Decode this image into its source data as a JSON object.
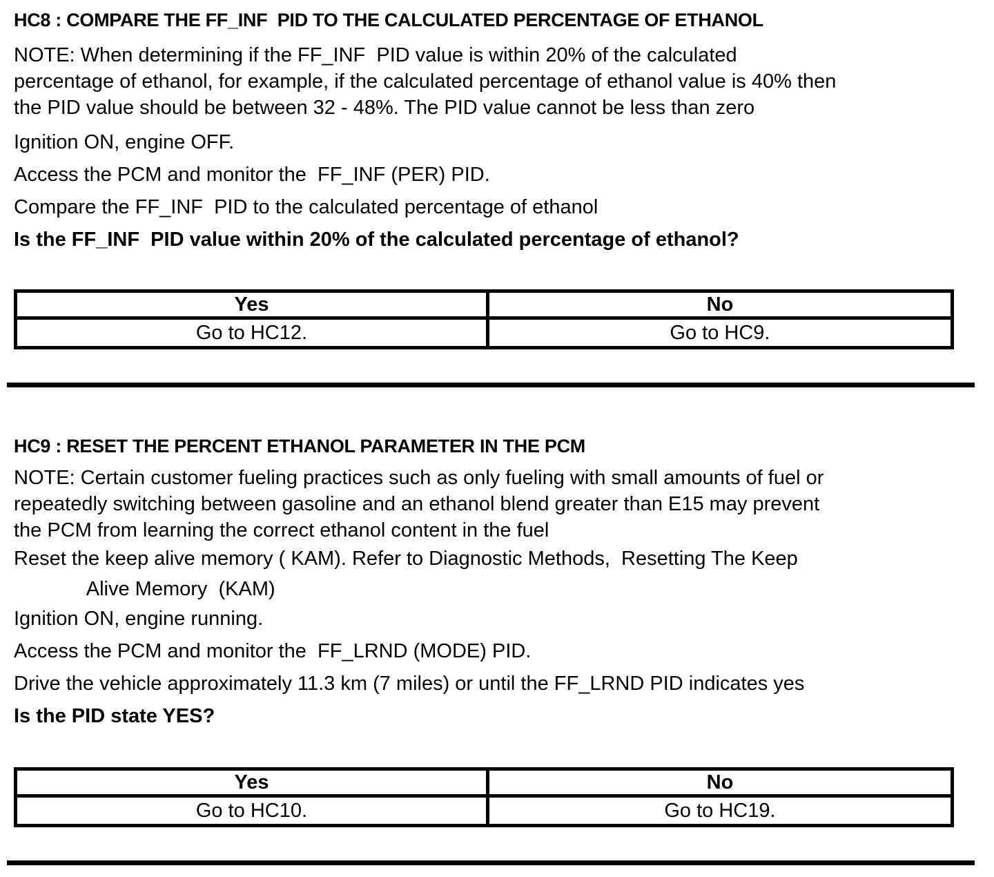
{
  "sections": [
    {
      "id": "HC8",
      "heading": "HC8 : COMPARE THE FF_INF  PID TO THE CALCULATED PERCENTAGE OF ETHANOL",
      "note": "NOTE: When determining if the FF_INF  PID value is within 20% of the calculated\npercentage of ethanol, for example, if the calculated percentage of ethanol value is 40% then\nthe PID value should be between 32 - 48%. The PID value cannot be less than zero",
      "steps": [
        "Ignition ON, engine OFF.",
        "Access the PCM and monitor the  FF_INF (PER) PID.",
        "Compare the FF_INF  PID to the calculated percentage of ethanol"
      ],
      "question": "Is the FF_INF  PID value within 20% of the calculated percentage of ethanol?",
      "table": {
        "headers": [
          "Yes",
          "No"
        ],
        "rows": [
          [
            "Go to HC12.",
            "Go to HC9."
          ]
        ]
      }
    },
    {
      "id": "HC9",
      "heading": "HC9 : RESET THE PERCENT ETHANOL PARAMETER IN THE PCM",
      "note": "NOTE: Certain customer fueling practices such as only fueling with small amounts of fuel or\nrepeatedly switching between gasoline and an ethanol blend greater than E15 may prevent\nthe PCM from learning the correct ethanol content in the fuel",
      "steps": [
        "Reset the keep alive memory ( KAM). Refer to Diagnostic Methods,  Resetting The Keep\n             Alive Memory  (KAM)",
        "Ignition ON, engine running.",
        "Access the PCM and monitor the  FF_LRND (MODE) PID.",
        "Drive the vehicle approximately 11.3 km (7 miles) or until the FF_LRND PID indicates yes"
      ],
      "question": "Is the PID state YES?",
      "table": {
        "headers": [
          "Yes",
          "No"
        ],
        "rows": [
          [
            "Go to HC10.",
            "Go to HC19."
          ]
        ]
      }
    }
  ]
}
